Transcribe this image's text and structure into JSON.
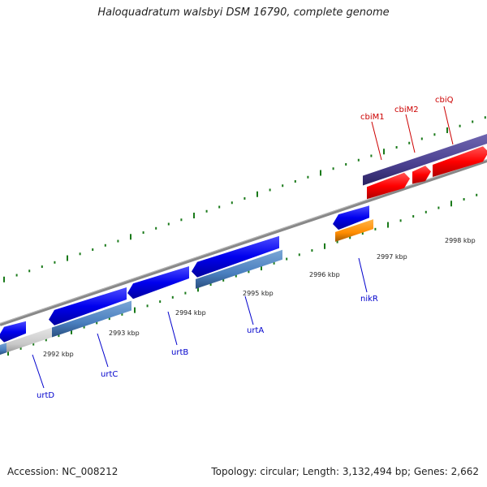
{
  "title": "Haloquadratum walsbyi DSM 16790, complete genome",
  "footer": {
    "accession": "Accession: NC_008212",
    "stats": "Topology: circular; Length: 3,132,494 bp; Genes: 2,662"
  },
  "ticks": [
    {
      "label": "2992 kbp"
    },
    {
      "label": "2993 kbp"
    },
    {
      "label": "2994 kbp"
    },
    {
      "label": "2995 kbp"
    },
    {
      "label": "2996 kbp"
    },
    {
      "label": "2997 kbp"
    },
    {
      "label": "2998 kbp"
    }
  ],
  "genes": [
    {
      "name": "urtD",
      "color": "#0000cc"
    },
    {
      "name": "urtC",
      "color": "#0000cc"
    },
    {
      "name": "urtB",
      "color": "#0000cc"
    },
    {
      "name": "urtA",
      "color": "#0000cc"
    },
    {
      "name": "nikR",
      "color": "#0000cc"
    },
    {
      "name": "cbiM1",
      "color": "#cc0000"
    },
    {
      "name": "cbiM2",
      "color": "#cc0000"
    },
    {
      "name": "cbiQ",
      "color": "#cc0000"
    }
  ],
  "colors": {
    "forward_cds": "#ff0000",
    "reverse_cds": "#0000ee",
    "backbone": "#888888",
    "ticks": "#1a7a1a",
    "blast_steel": "#4a7fbf",
    "blast_grey": "#c8c8c8",
    "blast_purple": "#4a3f8f",
    "blast_orange": "#ff8c00"
  }
}
